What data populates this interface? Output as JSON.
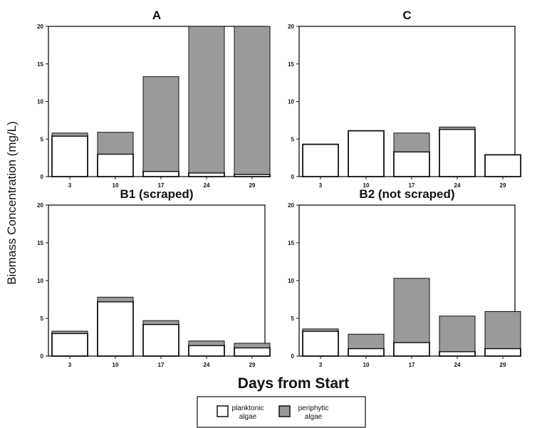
{
  "chart_data": {
    "type": "bar",
    "stacked": true,
    "xlabel": "Days from Start",
    "ylabel": "Biomass Concentration (mg/L)",
    "legend": {
      "placement": "bottom-center",
      "entries": [
        {
          "label_line1": "planktonic",
          "label_line2": "algae",
          "color": "#ffffff"
        },
        {
          "label_line1": "periphytic",
          "label_line2": "algae",
          "color": "#9a9a9a"
        }
      ]
    },
    "colors": {
      "planktonic": "#ffffff",
      "periphytic": "#9a9a9a",
      "stroke": "#111111"
    },
    "grid": false,
    "panels": [
      {
        "title": "A",
        "categories": [
          "3",
          "10",
          "17",
          "24",
          "29"
        ],
        "ylim": [
          0,
          20
        ],
        "yticks": [
          "0",
          "5",
          "10",
          "15",
          "20"
        ],
        "series": [
          {
            "name": "planktonic algae",
            "values": [
              5.4,
              3.0,
              0.7,
              0.5,
              0.3
            ]
          },
          {
            "name": "periphytic algae",
            "values": [
              0.4,
              2.9,
              12.6,
              19.5,
              19.7
            ]
          }
        ]
      },
      {
        "title": "C",
        "categories": [
          "3",
          "10",
          "17",
          "24",
          "29"
        ],
        "ylim": [
          0,
          20
        ],
        "yticks": [
          "0",
          "5",
          "10",
          "15",
          "20"
        ],
        "series": [
          {
            "name": "planktonic algae",
            "values": [
              4.3,
              6.1,
              3.3,
              6.3,
              2.9
            ]
          },
          {
            "name": "periphytic algae",
            "values": [
              0.0,
              0.0,
              2.5,
              0.3,
              0.0
            ]
          }
        ]
      },
      {
        "title": "B1 (scraped)",
        "categories": [
          "3",
          "10",
          "17",
          "24",
          "29"
        ],
        "ylim": [
          0,
          20
        ],
        "yticks": [
          "0",
          "5",
          "10",
          "15",
          "20"
        ],
        "series": [
          {
            "name": "planktonic algae",
            "values": [
              3.0,
              7.2,
              4.2,
              1.4,
              1.1
            ]
          },
          {
            "name": "periphytic algae",
            "values": [
              0.3,
              0.6,
              0.5,
              0.6,
              0.6
            ]
          }
        ]
      },
      {
        "title": "B2 (not scraped)",
        "categories": [
          "3",
          "10",
          "17",
          "24",
          "29"
        ],
        "ylim": [
          0,
          20
        ],
        "yticks": [
          "0",
          "5",
          "10",
          "15",
          "20"
        ],
        "series": [
          {
            "name": "planktonic algae",
            "values": [
              3.3,
              1.0,
              1.8,
              0.6,
              1.0
            ]
          },
          {
            "name": "periphytic algae",
            "values": [
              0.3,
              1.9,
              8.5,
              4.7,
              4.9
            ]
          }
        ]
      }
    ]
  }
}
